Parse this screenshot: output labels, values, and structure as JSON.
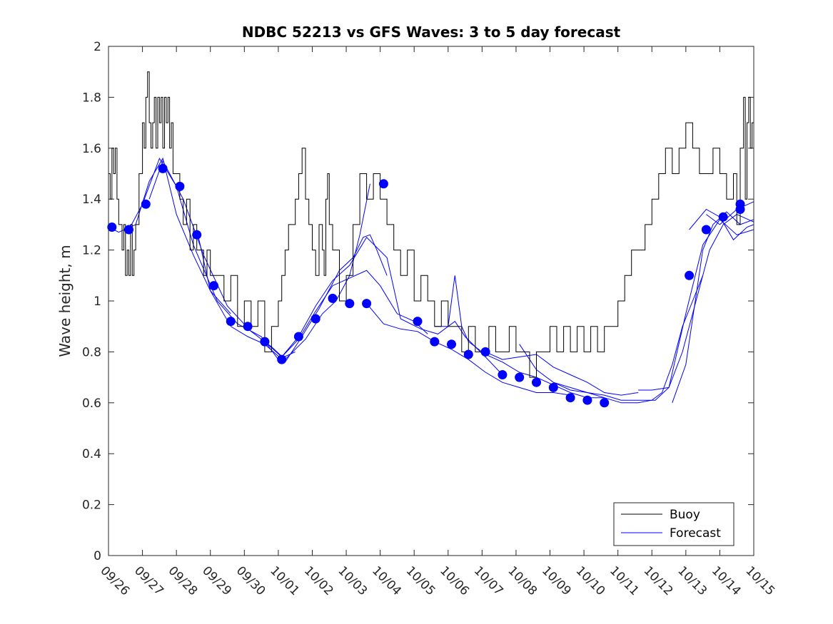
{
  "chart_data": {
    "type": "line",
    "title": "NDBC 52213 vs GFS Waves: 3 to 5 day forecast",
    "xlabel": "",
    "ylabel": "Wave height, m",
    "xlim": [
      0,
      19
    ],
    "ylim": [
      0,
      2
    ],
    "x_unit": "days since 09/26",
    "x_ticks": [
      0,
      1,
      2,
      3,
      4,
      5,
      6,
      7,
      8,
      9,
      10,
      11,
      12,
      13,
      14,
      15,
      16,
      17,
      18,
      19
    ],
    "x_tick_labels": [
      "09/26",
      "09/27",
      "09/28",
      "09/29",
      "09/30",
      "10/01",
      "10/02",
      "10/03",
      "10/04",
      "10/05",
      "10/06",
      "10/07",
      "10/08",
      "10/09",
      "10/10",
      "10/11",
      "10/12",
      "10/13",
      "10/14",
      "10/15"
    ],
    "y_ticks": [
      0,
      0.2,
      0.4,
      0.6,
      0.8,
      1,
      1.2,
      1.4,
      1.6,
      1.8,
      2
    ],
    "y_tick_labels": [
      "0",
      "0.2",
      "0.4",
      "0.6",
      "0.8",
      "1",
      "1.2",
      "1.4",
      "1.6",
      "1.8",
      "2"
    ],
    "legend": {
      "position": "bottom-right",
      "entries": [
        "Buoy",
        "Forecast"
      ]
    },
    "colors": {
      "buoy": "#000000",
      "forecast": "#0000ff"
    },
    "buoy": {
      "name": "Buoy",
      "x": [
        0,
        0.05,
        0.1,
        0.15,
        0.2,
        0.25,
        0.3,
        0.35,
        0.4,
        0.45,
        0.5,
        0.55,
        0.6,
        0.65,
        0.7,
        0.75,
        0.8,
        0.9,
        1.0,
        1.05,
        1.1,
        1.15,
        1.2,
        1.25,
        1.3,
        1.35,
        1.4,
        1.45,
        1.5,
        1.55,
        1.6,
        1.65,
        1.7,
        1.75,
        1.8,
        1.85,
        1.9,
        2.0,
        2.1,
        2.2,
        2.3,
        2.4,
        2.5,
        2.6,
        2.7,
        2.8,
        2.9,
        3.0,
        3.2,
        3.4,
        3.6,
        3.8,
        4.0,
        4.2,
        4.4,
        4.6,
        4.8,
        5.0,
        5.1,
        5.2,
        5.3,
        5.4,
        5.5,
        5.6,
        5.7,
        5.8,
        5.9,
        6.0,
        6.1,
        6.2,
        6.3,
        6.35,
        6.4,
        6.45,
        6.5,
        6.6,
        6.8,
        7.0,
        7.2,
        7.4,
        7.6,
        7.8,
        8.0,
        8.2,
        8.4,
        8.6,
        8.8,
        9.0,
        9.2,
        9.4,
        9.6,
        9.8,
        10.0,
        10.2,
        10.4,
        10.6,
        10.8,
        11.0,
        11.2,
        11.4,
        11.6,
        11.8,
        12.0,
        12.2,
        12.4,
        12.6,
        12.8,
        13.0,
        13.2,
        13.4,
        13.6,
        13.8,
        14.0,
        14.2,
        14.4,
        14.6,
        14.8,
        15.0,
        15.2,
        15.4,
        15.6,
        15.8,
        16.0,
        16.2,
        16.4,
        16.6,
        16.8,
        17.0,
        17.2,
        17.4,
        17.6,
        17.8,
        18.0,
        18.2,
        18.4,
        18.5,
        18.6,
        18.7,
        18.75,
        18.8,
        18.85,
        18.9,
        18.95,
        19.0
      ],
      "y": [
        1.5,
        1.4,
        1.6,
        1.5,
        1.6,
        1.4,
        1.3,
        1.3,
        1.2,
        1.3,
        1.1,
        1.2,
        1.1,
        1.3,
        1.1,
        1.2,
        1.3,
        1.5,
        1.7,
        1.6,
        1.8,
        1.9,
        1.7,
        1.6,
        1.7,
        1.8,
        1.6,
        1.8,
        1.7,
        1.8,
        1.6,
        1.8,
        1.7,
        1.8,
        1.6,
        1.7,
        1.5,
        1.5,
        1.4,
        1.3,
        1.4,
        1.2,
        1.3,
        1.2,
        1.2,
        1.1,
        1.2,
        1.1,
        1.1,
        1.0,
        1.1,
        0.9,
        1.0,
        0.9,
        1.0,
        0.8,
        0.9,
        1.0,
        1.1,
        1.2,
        1.3,
        1.3,
        1.4,
        1.5,
        1.6,
        1.4,
        1.3,
        1.2,
        1.1,
        1.3,
        1.2,
        1.1,
        1.4,
        1.5,
        1.3,
        1.2,
        1.0,
        1.1,
        1.3,
        1.5,
        1.4,
        1.5,
        1.4,
        1.3,
        1.2,
        1.1,
        1.2,
        1.0,
        1.1,
        1.0,
        0.9,
        1.0,
        0.9,
        0.9,
        0.8,
        0.9,
        0.8,
        0.8,
        0.9,
        0.8,
        0.8,
        0.9,
        0.8,
        0.8,
        0.7,
        0.8,
        0.8,
        0.9,
        0.8,
        0.9,
        0.8,
        0.9,
        0.8,
        0.9,
        0.8,
        0.9,
        0.9,
        1.0,
        1.1,
        1.2,
        1.2,
        1.3,
        1.4,
        1.5,
        1.6,
        1.5,
        1.6,
        1.7,
        1.6,
        1.5,
        1.5,
        1.6,
        1.5,
        1.4,
        1.5,
        1.3,
        1.6,
        1.8,
        1.4,
        1.7,
        1.8,
        1.6,
        1.7,
        1.8
      ]
    },
    "forecast_runs": [
      {
        "name": "Forecast",
        "x": [
          0,
          0.3,
          0.8,
          1.2,
          1.6,
          2.0,
          2.5,
          3.0,
          3.6
        ],
        "y": [
          1.29,
          1.27,
          1.3,
          1.47,
          1.56,
          1.34,
          1.18,
          1.04,
          0.95
        ]
      },
      {
        "name": "Forecast",
        "x": [
          0.6,
          1.0,
          1.5,
          2.0,
          2.5,
          3.2,
          3.8,
          4.5,
          5.0,
          5.5
        ],
        "y": [
          1.28,
          1.38,
          1.56,
          1.45,
          1.22,
          1.0,
          0.91,
          0.86,
          0.77,
          0.8
        ]
      },
      {
        "name": "Forecast",
        "x": [
          1.2,
          1.6,
          2.2,
          2.8,
          3.5,
          4.2,
          4.8,
          5.2,
          5.8,
          6.3,
          6.7,
          7.1,
          7.4,
          7.7
        ],
        "y": [
          1.4,
          1.55,
          1.4,
          1.18,
          0.98,
          0.88,
          0.82,
          0.77,
          0.85,
          0.95,
          1.0,
          1.1,
          1.26,
          1.46
        ]
      },
      {
        "name": "Forecast",
        "x": [
          2.6,
          3.0,
          3.6,
          4.1,
          4.6,
          5.2,
          5.6,
          6.2,
          6.8,
          7.2,
          7.5,
          7.7,
          7.9,
          8.2
        ],
        "y": [
          1.28,
          1.04,
          0.9,
          0.86,
          0.83,
          0.76,
          0.84,
          0.97,
          1.12,
          1.17,
          1.25,
          1.26,
          1.2,
          1.1
        ]
      },
      {
        "name": "Forecast",
        "x": [
          4.6,
          5.1,
          5.6,
          6.1,
          6.6,
          7.1,
          7.6,
          8.0,
          8.5,
          9.0,
          9.4
        ],
        "y": [
          0.84,
          0.78,
          0.85,
          0.96,
          1.06,
          1.09,
          1.12,
          1.06,
          0.95,
          0.92,
          0.87
        ]
      },
      {
        "name": "Forecast",
        "x": [
          5.1,
          5.6,
          6.1,
          6.6,
          7.1,
          7.6,
          8.2,
          8.6,
          9.2,
          9.7,
          10.2,
          10.5,
          11.1,
          11.6
        ],
        "y": [
          0.78,
          0.86,
          0.98,
          1.08,
          1.14,
          1.25,
          1.17,
          0.93,
          0.89,
          0.87,
          0.92,
          0.86,
          0.78,
          0.71
        ]
      },
      {
        "name": "Forecast",
        "x": [
          7.6,
          8.1,
          8.6,
          9.1,
          9.6,
          10.1,
          10.6,
          11.1,
          11.6,
          12.1,
          12.6,
          13.1,
          13.6
        ],
        "y": [
          0.99,
          0.91,
          0.89,
          0.88,
          0.84,
          0.81,
          0.77,
          0.72,
          0.68,
          0.66,
          0.64,
          0.64,
          0.63
        ]
      },
      {
        "name": "Forecast",
        "x": [
          9.6,
          10.0,
          10.2,
          10.4,
          10.6,
          11.1,
          11.6,
          12.1,
          12.6,
          13.1,
          13.6,
          14.1,
          14.6
        ],
        "y": [
          0.9,
          0.9,
          1.1,
          0.9,
          0.84,
          0.79,
          0.76,
          0.72,
          0.7,
          0.67,
          0.64,
          0.62,
          0.62
        ]
      },
      {
        "name": "Forecast",
        "x": [
          11.1,
          11.6,
          12.1,
          12.6,
          13.1,
          13.6,
          14.1,
          14.6,
          15.1,
          15.6
        ],
        "y": [
          0.8,
          0.77,
          0.78,
          0.79,
          0.74,
          0.71,
          0.68,
          0.64,
          0.63,
          0.64
        ]
      },
      {
        "name": "Forecast",
        "x": [
          12.1,
          12.6,
          13.1,
          13.6,
          14.1,
          14.6,
          15.1,
          15.6,
          16.0,
          16.3,
          16.6,
          16.9,
          17.2,
          17.5
        ],
        "y": [
          0.83,
          0.73,
          0.68,
          0.66,
          0.64,
          0.62,
          0.6,
          0.6,
          0.61,
          0.64,
          0.75,
          0.9,
          1.0,
          1.1
        ]
      },
      {
        "name": "Forecast",
        "x": [
          13.1,
          13.6,
          14.1,
          14.6,
          15.1,
          15.6,
          16.1,
          16.5,
          16.9,
          17.3,
          17.7,
          18.1,
          18.5,
          19.0
        ],
        "y": [
          0.68,
          0.65,
          0.64,
          0.63,
          0.61,
          0.61,
          0.61,
          0.66,
          0.8,
          1.0,
          1.2,
          1.3,
          1.34,
          1.31
        ]
      },
      {
        "name": "Forecast",
        "x": [
          15.6,
          16.0,
          16.5,
          17.0,
          17.5,
          18.0,
          18.5,
          19.0
        ],
        "y": [
          0.65,
          0.65,
          0.66,
          0.95,
          1.22,
          1.32,
          1.26,
          1.28
        ]
      },
      {
        "name": "Forecast",
        "x": [
          16.6,
          17.0,
          17.5,
          17.8,
          18.2,
          18.6,
          19.0
        ],
        "y": [
          0.6,
          0.75,
          1.2,
          1.3,
          1.35,
          1.3,
          1.32
        ]
      },
      {
        "name": "Forecast",
        "x": [
          17.1,
          17.6,
          18.0,
          18.4,
          18.8,
          19.0
        ],
        "y": [
          1.28,
          1.36,
          1.33,
          1.24,
          1.29,
          1.3
        ]
      },
      {
        "name": "Forecast",
        "x": [
          17.6,
          18.0,
          18.5,
          19.0
        ],
        "y": [
          1.34,
          1.3,
          1.36,
          1.39
        ]
      }
    ],
    "forecast_markers": {
      "name": "Forecast",
      "x": [
        0.1,
        0.6,
        1.1,
        1.6,
        2.1,
        2.6,
        3.1,
        3.6,
        4.1,
        4.6,
        5.1,
        5.6,
        6.1,
        6.6,
        7.1,
        7.6,
        8.1,
        8.6,
        9.1,
        9.6,
        10.1,
        10.6,
        11.1,
        11.6,
        12.1,
        12.6,
        13.1,
        13.6,
        14.1,
        14.6,
        15.1,
        15.6,
        16.1,
        16.6,
        17.1,
        17.6,
        18.1,
        18.6
      ],
      "y": [
        1.29,
        1.28,
        1.38,
        1.52,
        1.45,
        1.26,
        1.06,
        0.92,
        0.9,
        0.84,
        0.77,
        0.86,
        0.93,
        1.01,
        0.99,
        0.99,
        1.46,
        null,
        0.92,
        0.84,
        0.83,
        0.79,
        0.8,
        0.71,
        0.7,
        0.68,
        0.66,
        0.62,
        0.61,
        0.6,
        null,
        null,
        null,
        null,
        1.1,
        1.28,
        1.33,
        1.38
      ]
    },
    "forecast_marker_extra": {
      "x": [
        18.6
      ],
      "y": [
        1.36
      ]
    }
  }
}
